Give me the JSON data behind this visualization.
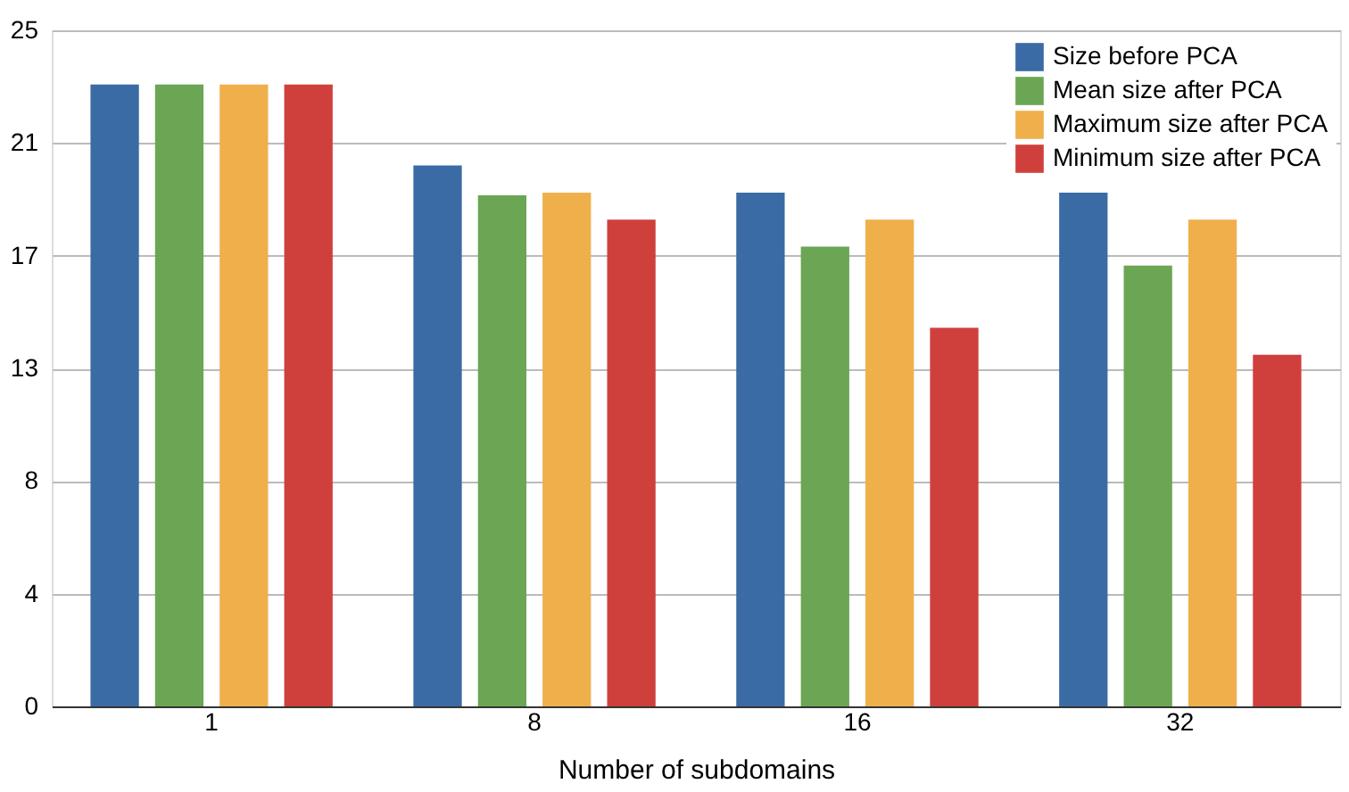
{
  "chart_data": {
    "type": "bar",
    "xlabel": "Number of subdomains",
    "categories": [
      "1",
      "8",
      "16",
      "32"
    ],
    "series": [
      {
        "name": "Size before PCA",
        "color": "#3b6ba5",
        "values": [
          23,
          20,
          19,
          19
        ]
      },
      {
        "name": "Mean size after PCA",
        "color": "#6aa653",
        "values": [
          23,
          18.9,
          17,
          16.3
        ]
      },
      {
        "name": "Maximum size after PCA",
        "color": "#efb04b",
        "values": [
          23,
          19,
          18,
          18
        ]
      },
      {
        "name": "Minimum size after PCA",
        "color": "#cf403c",
        "values": [
          23,
          18,
          14,
          13
        ]
      }
    ],
    "ylim": [
      0,
      25
    ],
    "yticks": [
      0,
      {
        "value": 4.1667,
        "label": "4"
      },
      {
        "value": 8.3333,
        "label": "8"
      },
      {
        "value": 12.5,
        "label": "13"
      },
      {
        "value": 16.6667,
        "label": "17"
      },
      {
        "value": 20.8333,
        "label": "21"
      },
      25
    ],
    "grid": "y",
    "legend": "top right"
  }
}
